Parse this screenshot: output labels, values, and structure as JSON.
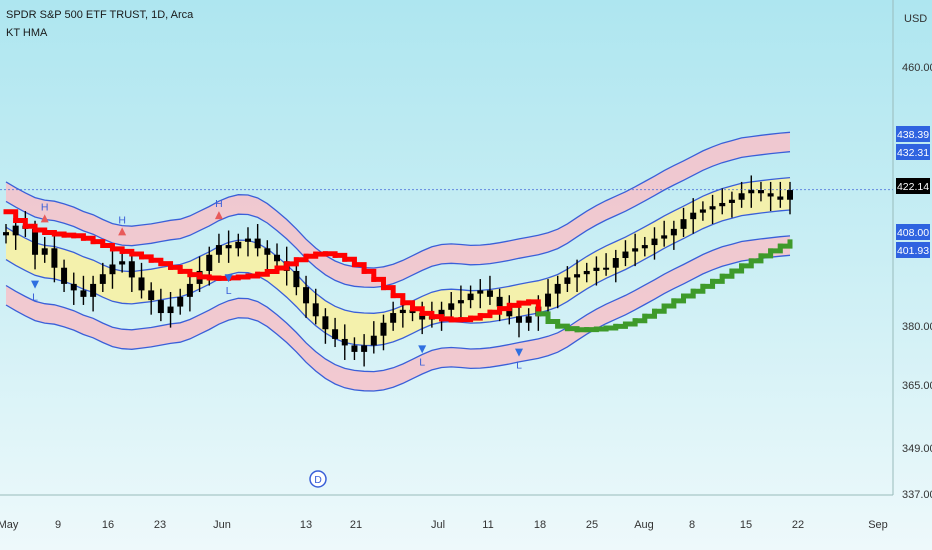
{
  "header": {
    "symbol_line": "SPDR S&P 500 ETF TRUST, 1D, Arca",
    "indicator_name": "KT HMA"
  },
  "colors": {
    "outer_band_fill": "#f4c4cc",
    "inner_band_fill": "#f6f0a8",
    "band_line": "#3a5fd8",
    "hma_down": "#ff0000",
    "hma_up": "#3e9a2a",
    "candle": "#000000",
    "high_marker": "#e85a5a",
    "low_marker": "#2f6fe0",
    "label_text": "#3a5fd8",
    "price_badge_bg": "#2f63e0",
    "last_price_bg": "#000000"
  },
  "chart_data": {
    "type": "candlestick",
    "currency_label": "USD",
    "y_ticks": [
      "460.00",
      "380.00",
      "365.00",
      "349.00",
      "337.00"
    ],
    "x_ticks": [
      "May",
      "9",
      "16",
      "23",
      "Jun",
      "13",
      "21",
      "Jul",
      "11",
      "18",
      "25",
      "Aug",
      "8",
      "15",
      "22",
      "Sep"
    ],
    "price_badges": [
      {
        "value": "438.39",
        "kind": "band"
      },
      {
        "value": "432.31",
        "kind": "band"
      },
      {
        "value": "422.14",
        "kind": "last"
      },
      {
        "value": "408.00",
        "kind": "band"
      },
      {
        "value": "401.93",
        "kind": "band"
      }
    ],
    "marker_labels": {
      "high": "H",
      "low": "L"
    },
    "event_marker": "D",
    "last_close": 422.14,
    "hma_color_change_x": 18,
    "closes": [
      408,
      411,
      410,
      402,
      404,
      398,
      393,
      391,
      389,
      393,
      396,
      399,
      400,
      395,
      391,
      388,
      384,
      386,
      389,
      393,
      397,
      402,
      405,
      404,
      406,
      407,
      404,
      402,
      400,
      397,
      392,
      387,
      383,
      379,
      376,
      374,
      372,
      374,
      377,
      381,
      384,
      385,
      384,
      382,
      383,
      385,
      387,
      388,
      390,
      391,
      389,
      386,
      383,
      381,
      383,
      386,
      390,
      393,
      395,
      396,
      397,
      398,
      398,
      401,
      403,
      404,
      405,
      407,
      408,
      410,
      413,
      415,
      416,
      417,
      418,
      419,
      421,
      422,
      421,
      420,
      419,
      422
    ]
  }
}
